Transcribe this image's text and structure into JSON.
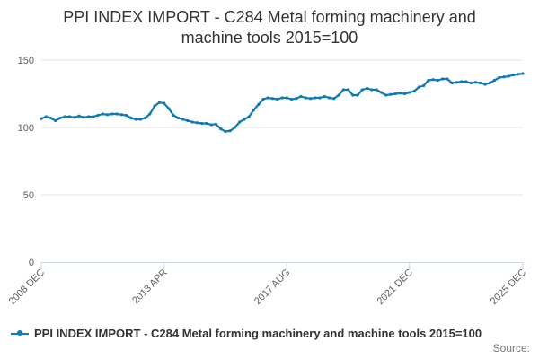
{
  "chart_data": {
    "type": "line",
    "title": "PPI INDEX IMPORT - C284 Metal forming machinery and machine tools 2015=100",
    "title_lines": [
      "PPI INDEX IMPORT - C284 Metal forming machinery and",
      "machine tools 2015=100"
    ],
    "xlabel": "",
    "ylabel": "",
    "ylim": [
      0,
      150
    ],
    "y_ticks": [
      0,
      50,
      100,
      150
    ],
    "x_range": [
      "2008 DEC",
      "2025 DEC"
    ],
    "x_tick_labels": [
      "2008 DEC",
      "2013 APR",
      "2017 AUG",
      "2021 DEC",
      "2025 DEC"
    ],
    "grid": true,
    "legend_position": "bottom",
    "color": "#0d7ab5",
    "series": [
      {
        "name": "PPI INDEX IMPORT - C284 Metal forming machinery and machine tools 2015=100",
        "points": [
          [
            "2008-12",
            106.5
          ],
          [
            "2009-02",
            108
          ],
          [
            "2009-04",
            107
          ],
          [
            "2009-06",
            105
          ],
          [
            "2009-08",
            107
          ],
          [
            "2009-10",
            108
          ],
          [
            "2009-12",
            108
          ],
          [
            "2010-02",
            107.5
          ],
          [
            "2010-04",
            108.5
          ],
          [
            "2010-06",
            107.5
          ],
          [
            "2010-08",
            108
          ],
          [
            "2010-10",
            108
          ],
          [
            "2010-12",
            109
          ],
          [
            "2011-02",
            110
          ],
          [
            "2011-04",
            109.5
          ],
          [
            "2011-06",
            110
          ],
          [
            "2011-08",
            110
          ],
          [
            "2011-10",
            109.5
          ],
          [
            "2011-12",
            109
          ],
          [
            "2012-02",
            107
          ],
          [
            "2012-04",
            106
          ],
          [
            "2012-06",
            106
          ],
          [
            "2012-08",
            107
          ],
          [
            "2012-10",
            110
          ],
          [
            "2012-12",
            116
          ],
          [
            "2013-02",
            118.5
          ],
          [
            "2013-04",
            118
          ],
          [
            "2013-06",
            114
          ],
          [
            "2013-08",
            109
          ],
          [
            "2013-10",
            107
          ],
          [
            "2013-12",
            106
          ],
          [
            "2014-02",
            105
          ],
          [
            "2014-04",
            104
          ],
          [
            "2014-06",
            103.5
          ],
          [
            "2014-08",
            103
          ],
          [
            "2014-10",
            103
          ],
          [
            "2014-12",
            102
          ],
          [
            "2015-02",
            102.5
          ],
          [
            "2015-04",
            99
          ],
          [
            "2015-06",
            97
          ],
          [
            "2015-08",
            97.5
          ],
          [
            "2015-10",
            100
          ],
          [
            "2015-12",
            104
          ],
          [
            "2016-02",
            106
          ],
          [
            "2016-04",
            108
          ],
          [
            "2016-06",
            113
          ],
          [
            "2016-08",
            117
          ],
          [
            "2016-10",
            121
          ],
          [
            "2016-12",
            122
          ],
          [
            "2017-02",
            121.5
          ],
          [
            "2017-04",
            121
          ],
          [
            "2017-06",
            122
          ],
          [
            "2017-08",
            122
          ],
          [
            "2017-10",
            121
          ],
          [
            "2017-12",
            121.5
          ],
          [
            "2018-02",
            123
          ],
          [
            "2018-04",
            122
          ],
          [
            "2018-06",
            121.5
          ],
          [
            "2018-08",
            122
          ],
          [
            "2018-10",
            122
          ],
          [
            "2018-12",
            123
          ],
          [
            "2019-02",
            122
          ],
          [
            "2019-04",
            121.5
          ],
          [
            "2019-06",
            124
          ],
          [
            "2019-08",
            128
          ],
          [
            "2019-10",
            128
          ],
          [
            "2019-12",
            124
          ],
          [
            "2020-02",
            124
          ],
          [
            "2020-04",
            128
          ],
          [
            "2020-06",
            129
          ],
          [
            "2020-08",
            128
          ],
          [
            "2020-10",
            128
          ],
          [
            "2020-12",
            126
          ],
          [
            "2021-02",
            124
          ],
          [
            "2021-04",
            124.5
          ],
          [
            "2021-06",
            125
          ],
          [
            "2021-08",
            125.5
          ],
          [
            "2021-10",
            125
          ],
          [
            "2021-12",
            126
          ],
          [
            "2022-02",
            127
          ],
          [
            "2022-04",
            130
          ],
          [
            "2022-06",
            131
          ],
          [
            "2022-08",
            135
          ],
          [
            "2022-10",
            135.5
          ],
          [
            "2022-12",
            135
          ],
          [
            "2023-02",
            136
          ],
          [
            "2023-04",
            136
          ],
          [
            "2023-06",
            133
          ],
          [
            "2023-08",
            133.5
          ],
          [
            "2023-10",
            134
          ],
          [
            "2023-12",
            134
          ],
          [
            "2024-02",
            133
          ],
          [
            "2024-04",
            133.5
          ],
          [
            "2024-06",
            133
          ],
          [
            "2024-08",
            132
          ],
          [
            "2024-10",
            133
          ],
          [
            "2024-12",
            135
          ],
          [
            "2025-02",
            137
          ],
          [
            "2025-04",
            137.5
          ],
          [
            "2025-06",
            138
          ],
          [
            "2025-08",
            139
          ],
          [
            "2025-10",
            139.5
          ],
          [
            "2025-12",
            140
          ]
        ]
      }
    ]
  },
  "legend_label": "PPI INDEX IMPORT - C284 Metal forming machinery and machine tools 2015=100",
  "source_label": "Source:"
}
